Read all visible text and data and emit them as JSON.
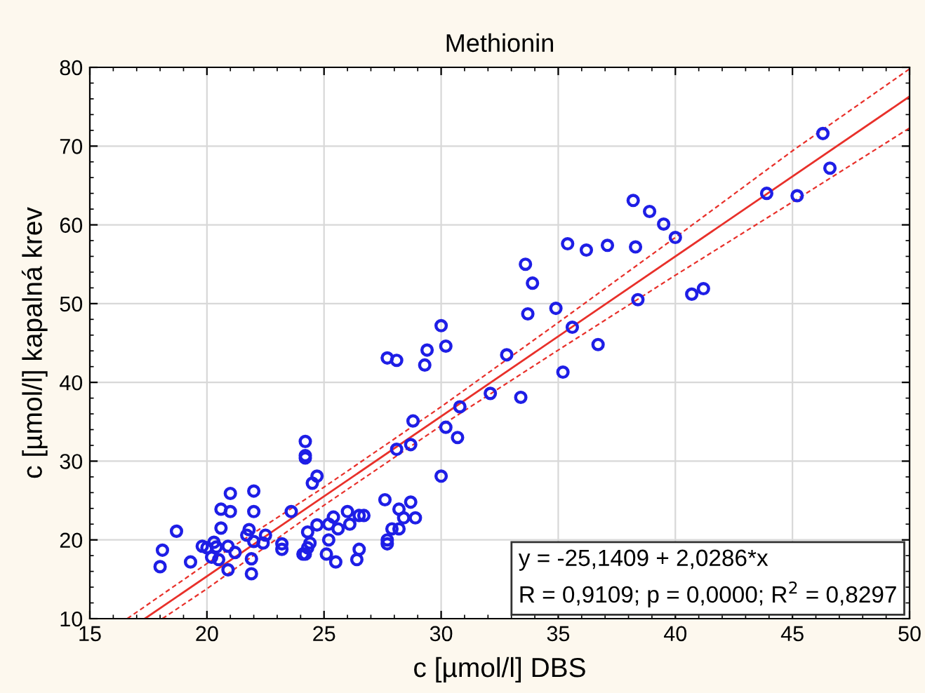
{
  "chart_data": {
    "type": "scatter",
    "title": "Methionin",
    "xlabel": "c [µmol/l] DBS",
    "ylabel": "c [µmol/l] kapalná krev",
    "xlim": [
      15,
      50
    ],
    "xticks": [
      15,
      20,
      25,
      30,
      35,
      40,
      45,
      50
    ],
    "ylim": [
      10,
      80
    ],
    "yticks": [
      10,
      20,
      30,
      40,
      50,
      60,
      70,
      80
    ],
    "grid": true,
    "annotations": [
      "y = -25,1409 + 2,0286*x\nR = 0,9109; p = 0,0000; R$^{2}$ = 0,8297"
    ],
    "series": [
      {
        "type": "scatter",
        "marker": "circle",
        "color": "#1e1ee6",
        "x": [
          46.3,
          46.6,
          43.9,
          45.2,
          38.2,
          38.9,
          39.5,
          40.0,
          35.4,
          36.2,
          37.1,
          38.3,
          33.6,
          33.9,
          40.7,
          41.2,
          38.4,
          34.9,
          33.7,
          35.6,
          36.7,
          35.2,
          32.8,
          32.1,
          33.4,
          30.8,
          28.8,
          30.2,
          30.7,
          28.7,
          28.1,
          27.7,
          28.1,
          29.3,
          29.4,
          30.0,
          30.2,
          24.2,
          24.2,
          24.2,
          24.7,
          24.5,
          21.0,
          22.0,
          20.6,
          21.0,
          22.0,
          23.6,
          18.7,
          20.6,
          21.8,
          21.7,
          22.5,
          18.1,
          18.0,
          19.3,
          19.8,
          20.0,
          20.3,
          20.4,
          20.2,
          20.5,
          20.9,
          21.2,
          20.9,
          21.9,
          21.9,
          22.0,
          22.4,
          23.2,
          23.2,
          24.3,
          24.4,
          24.3,
          24.1,
          24.2,
          24.7,
          25.2,
          25.4,
          25.6,
          25.2,
          25.1,
          25.5,
          26.0,
          26.1,
          26.5,
          26.7,
          26.5,
          26.4,
          27.6,
          28.2,
          28.7,
          28.4,
          28.9,
          27.9,
          28.2,
          27.7,
          27.7,
          30.0
        ],
        "values": [
          71.6,
          67.2,
          64.0,
          63.7,
          63.1,
          61.7,
          60.1,
          58.4,
          57.6,
          56.8,
          57.4,
          57.2,
          55.0,
          52.6,
          51.2,
          51.9,
          50.5,
          49.4,
          48.7,
          47.0,
          44.8,
          41.3,
          43.5,
          38.6,
          38.1,
          36.9,
          35.1,
          34.3,
          33.0,
          32.1,
          31.5,
          43.1,
          42.8,
          42.2,
          44.1,
          47.2,
          44.6,
          32.5,
          30.7,
          30.4,
          28.1,
          27.2,
          25.9,
          26.2,
          23.9,
          23.6,
          23.6,
          23.6,
          21.1,
          21.5,
          21.3,
          20.6,
          20.6,
          18.7,
          16.6,
          17.2,
          19.2,
          19.0,
          19.7,
          19.1,
          17.8,
          17.5,
          19.2,
          18.4,
          16.2,
          17.6,
          15.7,
          19.8,
          19.6,
          19.5,
          18.8,
          21.0,
          19.6,
          19.0,
          18.2,
          18.2,
          21.9,
          22.0,
          22.9,
          21.4,
          20.0,
          18.2,
          17.2,
          23.6,
          22.0,
          23.1,
          23.1,
          18.8,
          17.5,
          25.1,
          23.9,
          24.8,
          22.8,
          22.8,
          21.4,
          21.4,
          20.0,
          19.5,
          28.1
        ]
      },
      {
        "type": "line",
        "color": "#e8302a",
        "line_style": "solid",
        "marker": "none",
        "x": [
          17.35,
          50
        ],
        "values": [
          10.0,
          76.3
        ]
      },
      {
        "type": "line",
        "color": "#e8302a",
        "line_style": "dashed",
        "marker": "none",
        "x": [
          16.6,
          20,
          25,
          30,
          35,
          40,
          45,
          50
        ],
        "values": [
          10.0,
          17.0,
          26.7,
          36.9,
          47.6,
          58.4,
          69.4,
          79.8
        ]
      },
      {
        "type": "line",
        "color": "#e8302a",
        "line_style": "dashed",
        "marker": "none",
        "x": [
          18.1,
          20,
          25,
          30,
          35,
          40,
          45,
          50
        ],
        "values": [
          10.0,
          13.8,
          24.4,
          34.5,
          44.1,
          53.6,
          62.9,
          72.3
        ]
      }
    ]
  }
}
